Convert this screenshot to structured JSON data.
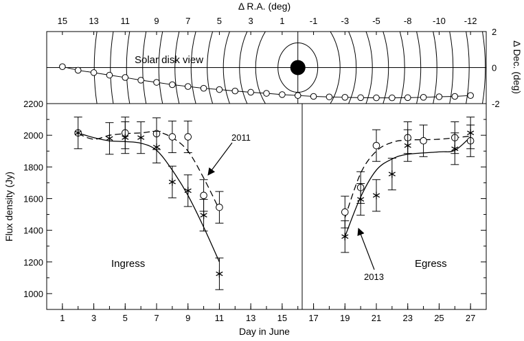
{
  "chart_data": {
    "type": "scatter",
    "top_panel": {
      "title": "Δ R.A. (deg)",
      "ylabel": "Δ Dec. (deg)",
      "annotation": "Solar disk view",
      "ra_ticks": [
        {
          "day": 1,
          "label": "15"
        },
        {
          "day": 3,
          "label": "13"
        },
        {
          "day": 5,
          "label": "11"
        },
        {
          "day": 7,
          "label": "9"
        },
        {
          "day": 9,
          "label": "7"
        },
        {
          "day": 11,
          "label": "5"
        },
        {
          "day": 13,
          "label": "3"
        },
        {
          "day": 15,
          "label": "1"
        },
        {
          "day": 17,
          "label": "-1"
        },
        {
          "day": 19,
          "label": "-3"
        },
        {
          "day": 21,
          "label": "-5"
        },
        {
          "day": 23,
          "label": "-8"
        },
        {
          "day": 25,
          "label": "-10"
        },
        {
          "day": 27,
          "label": "-12"
        }
      ],
      "dec_ticks": [
        "2",
        "0",
        "-2"
      ],
      "ylim": [
        -2,
        2
      ],
      "sun_day": 16,
      "track": [
        {
          "day": 1,
          "dec": 0.05
        },
        {
          "day": 2,
          "dec": -0.15
        },
        {
          "day": 3,
          "dec": -0.28
        },
        {
          "day": 4,
          "dec": -0.42
        },
        {
          "day": 5,
          "dec": -0.55
        },
        {
          "day": 6,
          "dec": -0.7
        },
        {
          "day": 7,
          "dec": -0.82
        },
        {
          "day": 8,
          "dec": -0.95
        },
        {
          "day": 9,
          "dec": -1.05
        },
        {
          "day": 10,
          "dec": -1.15
        },
        {
          "day": 11,
          "dec": -1.22
        },
        {
          "day": 12,
          "dec": -1.3
        },
        {
          "day": 13,
          "dec": -1.37
        },
        {
          "day": 14,
          "dec": -1.43
        },
        {
          "day": 15,
          "dec": -1.5
        },
        {
          "day": 16,
          "dec": -1.55
        },
        {
          "day": 17,
          "dec": -1.6
        },
        {
          "day": 18,
          "dec": -1.63
        },
        {
          "day": 19,
          "dec": -1.65
        },
        {
          "day": 20,
          "dec": -1.67
        },
        {
          "day": 21,
          "dec": -1.68
        },
        {
          "day": 22,
          "dec": -1.68
        },
        {
          "day": 23,
          "dec": -1.67
        },
        {
          "day": 24,
          "dec": -1.65
        },
        {
          "day": 25,
          "dec": -1.62
        },
        {
          "day": 26,
          "dec": -1.6
        },
        {
          "day": 27,
          "dec": -1.55
        }
      ]
    },
    "main_panel": {
      "xlabel": "Day in June",
      "ylabel": "Flux density (Jy)",
      "xlim": [
        0,
        28
      ],
      "ylim": [
        900,
        2200
      ],
      "x_ticks": [
        1,
        3,
        5,
        7,
        9,
        11,
        13,
        15,
        17,
        19,
        21,
        23,
        25,
        27
      ],
      "y_ticks": [
        1000,
        1200,
        1400,
        1600,
        1800,
        2000,
        2200
      ],
      "series": [
        {
          "name": "2011",
          "marker": "circle",
          "points": [
            {
              "x": 2,
              "y": 2015,
              "err": 0
            },
            {
              "x": 5,
              "y": 2015,
              "err": 100
            },
            {
              "x": 7,
              "y": 2010,
              "err": 100
            },
            {
              "x": 8,
              "y": 1990,
              "err": 100
            },
            {
              "x": 9,
              "y": 1990,
              "err": 100
            },
            {
              "x": 10,
              "y": 1620,
              "err": 100
            },
            {
              "x": 11,
              "y": 1545,
              "err": 100
            },
            {
              "x": 19,
              "y": 1515,
              "err": 100
            },
            {
              "x": 20,
              "y": 1670,
              "err": 100
            },
            {
              "x": 21,
              "y": 1935,
              "err": 100
            },
            {
              "x": 23,
              "y": 1985,
              "err": 100
            },
            {
              "x": 24,
              "y": 1965,
              "err": 100
            },
            {
              "x": 26,
              "y": 1985,
              "err": 100
            },
            {
              "x": 27,
              "y": 1965,
              "err": 100
            }
          ]
        },
        {
          "name": "2013",
          "marker": "star",
          "points": [
            {
              "x": 2,
              "y": 2015,
              "err": 100
            },
            {
              "x": 4,
              "y": 1980,
              "err": 100
            },
            {
              "x": 5,
              "y": 1985,
              "err": 100
            },
            {
              "x": 6,
              "y": 1985,
              "err": 100
            },
            {
              "x": 7,
              "y": 1925,
              "err": 100
            },
            {
              "x": 8,
              "y": 1705,
              "err": 100
            },
            {
              "x": 9,
              "y": 1650,
              "err": 100
            },
            {
              "x": 10,
              "y": 1495,
              "err": 100
            },
            {
              "x": 11,
              "y": 1125,
              "err": 100
            },
            {
              "x": 19,
              "y": 1360,
              "err": 100
            },
            {
              "x": 20,
              "y": 1595,
              "err": 100
            },
            {
              "x": 21,
              "y": 1620,
              "err": 100
            },
            {
              "x": 22,
              "y": 1755,
              "err": 100
            },
            {
              "x": 23,
              "y": 1935,
              "err": 100
            },
            {
              "x": 26,
              "y": 1915,
              "err": 100
            },
            {
              "x": 27,
              "y": 2015,
              "err": 100
            }
          ]
        }
      ],
      "fit_2011_ingress": [
        [
          2,
          2010
        ],
        [
          3,
          1975
        ],
        [
          4,
          2000
        ],
        [
          5,
          2010
        ],
        [
          6,
          2015
        ],
        [
          7,
          2022
        ],
        [
          8,
          1985
        ],
        [
          9,
          1900
        ],
        [
          10,
          1730
        ],
        [
          11,
          1530
        ]
      ],
      "fit_2011_egress": [
        [
          19,
          1480
        ],
        [
          20,
          1760
        ],
        [
          21,
          1900
        ],
        [
          22,
          1955
        ],
        [
          23,
          1970
        ],
        [
          25,
          1975
        ],
        [
          27,
          1995
        ]
      ],
      "fit_2013_ingress": [
        [
          2,
          2015
        ],
        [
          3,
          1985
        ],
        [
          4,
          1965
        ],
        [
          5,
          1960
        ],
        [
          6,
          1950
        ],
        [
          7,
          1905
        ],
        [
          8,
          1780
        ],
        [
          9,
          1620
        ],
        [
          10,
          1420
        ],
        [
          11,
          1200
        ]
      ],
      "fit_2013_egress": [
        [
          19,
          1360
        ],
        [
          20,
          1610
        ],
        [
          21,
          1780
        ],
        [
          22,
          1850
        ],
        [
          23,
          1880
        ],
        [
          25,
          1895
        ],
        [
          26,
          1905
        ],
        [
          27,
          1990
        ]
      ],
      "annotations": {
        "ingress": "Ingress",
        "egress": "Egress",
        "label_2011": "2011",
        "label_2013": "2013"
      }
    }
  }
}
